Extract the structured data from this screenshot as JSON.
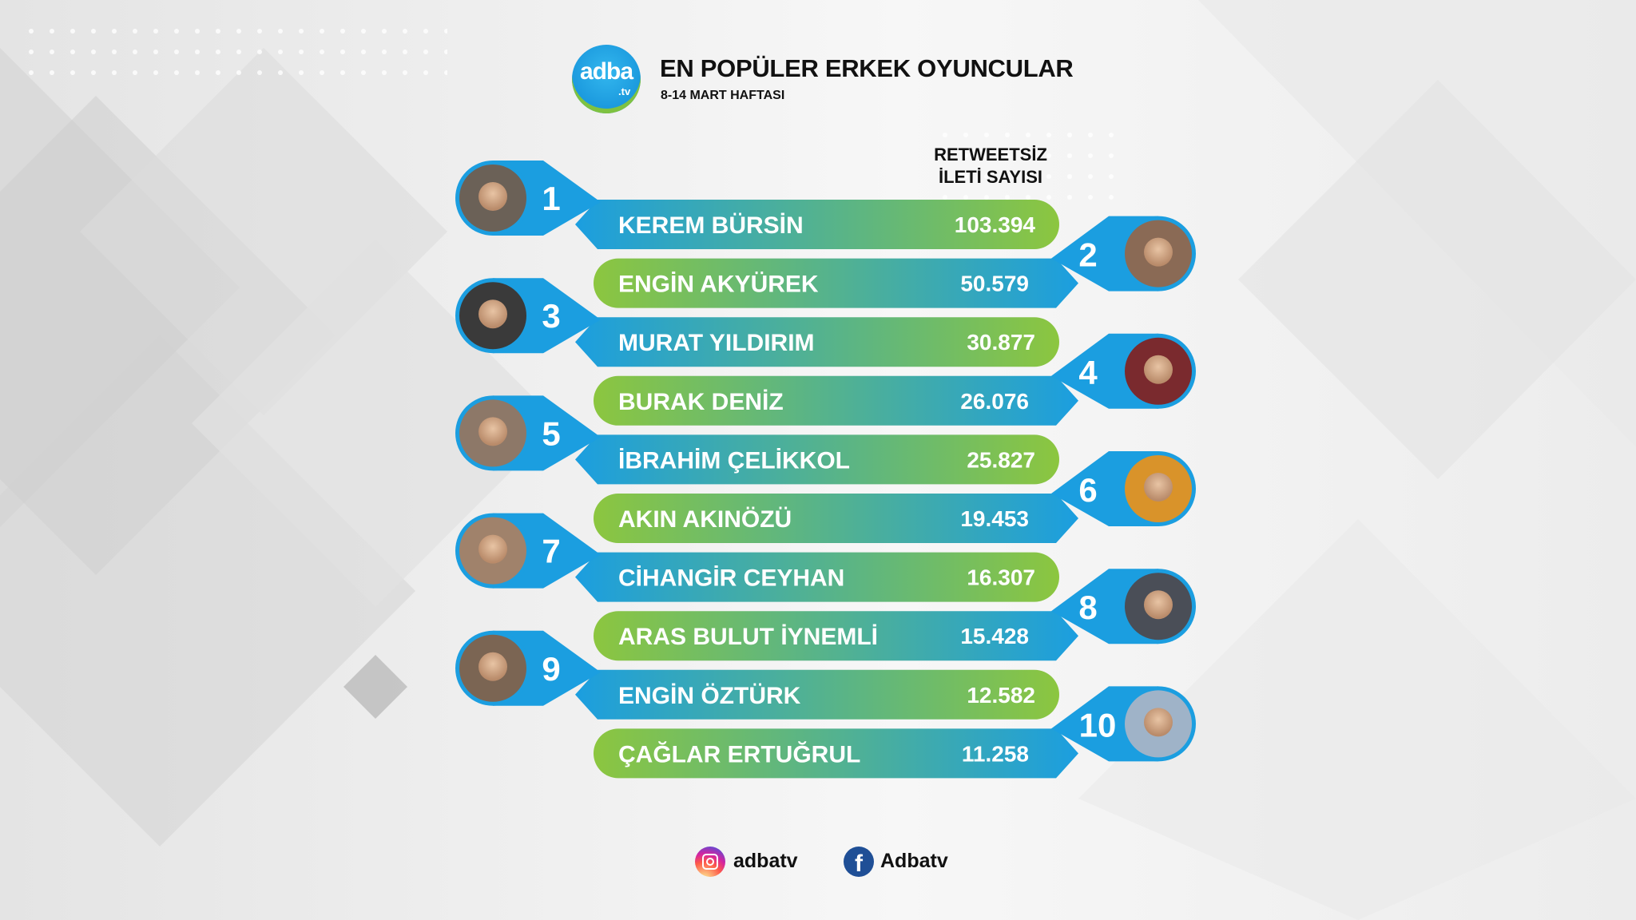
{
  "header": {
    "logo_text": "adba",
    "logo_sub": ".tv",
    "title": "EN POPÜLER ERKEK OYUNCULAR",
    "subtitle": "8-14 MART HAFTASI"
  },
  "column_header": {
    "line1": "RETWEETSİZ",
    "line2": "İLETİ SAYISI"
  },
  "chart_data": {
    "type": "table",
    "title": "EN POPÜLER ERKEK OYUNCULAR",
    "subtitle": "8-14 MART HAFTASI",
    "value_label": "RETWEETSİZ İLETİ SAYISI",
    "rows": [
      {
        "rank": "1",
        "name": "KEREM BÜRSİN",
        "value": 103394,
        "value_text": "103.394"
      },
      {
        "rank": "2",
        "name": "ENGİN AKYÜREK",
        "value": 50579,
        "value_text": "50.579"
      },
      {
        "rank": "3",
        "name": "MURAT YILDIRIM",
        "value": 30877,
        "value_text": "30.877"
      },
      {
        "rank": "4",
        "name": "BURAK DENİZ",
        "value": 26076,
        "value_text": "26.076"
      },
      {
        "rank": "5",
        "name": "İBRAHİM ÇELİKKOL",
        "value": 25827,
        "value_text": "25.827"
      },
      {
        "rank": "6",
        "name": "AKIN AKINÖZÜ",
        "value": 19453,
        "value_text": "19.453"
      },
      {
        "rank": "7",
        "name": "CİHANGİR CEYHAN",
        "value": 16307,
        "value_text": "16.307"
      },
      {
        "rank": "8",
        "name": "ARAS BULUT İYNEMLİ",
        "value": 15428,
        "value_text": "15.428"
      },
      {
        "rank": "9",
        "name": "ENGİN ÖZTÜRK",
        "value": 12582,
        "value_text": "12.582"
      },
      {
        "rank": "10",
        "name": "ÇAĞLAR ERTUĞRUL",
        "value": 11258,
        "value_text": "11.258"
      }
    ]
  },
  "colors": {
    "blue": "#1b9ee0",
    "green": "#8cc63f",
    "avatar_tones": [
      "#6b6157",
      "#8a6a55",
      "#3a3a3a",
      "#7a2a2e",
      "#8d7868",
      "#d9932a",
      "#a0826b",
      "#4a4e57",
      "#7b6553",
      "#9fb3c8"
    ]
  },
  "footer": {
    "instagram": "adbatv",
    "facebook": "Adbatv",
    "instagram_icon": "instagram-icon",
    "facebook_icon": "facebook-icon"
  }
}
